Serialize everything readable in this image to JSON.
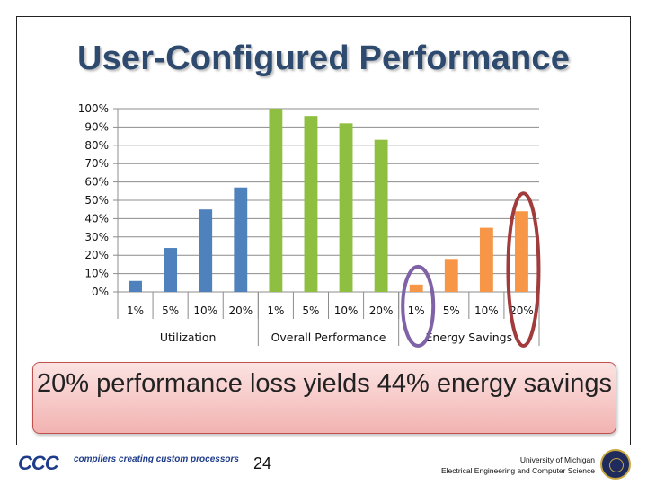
{
  "slide": {
    "title": "User-Configured Performance",
    "callout": "20% performance loss yields 44% energy savings",
    "page_number": "24",
    "footer_logo_text": "CCC",
    "footer_tagline": "compilers creating custom processors",
    "footer_univ_line1": "University of Michigan",
    "footer_univ_line2": "Electrical Engineering and Computer Science"
  },
  "chart_data": {
    "type": "bar",
    "ylim": [
      0,
      100
    ],
    "yticks": [
      "0%",
      "10%",
      "20%",
      "30%",
      "40%",
      "50%",
      "60%",
      "70%",
      "80%",
      "90%",
      "100%"
    ],
    "grid": true,
    "groups": [
      {
        "name": "Utilization",
        "color": "#4f81bd",
        "categories": [
          "1%",
          "5%",
          "10%",
          "20%"
        ],
        "values": [
          6,
          24,
          45,
          57
        ]
      },
      {
        "name": "Overall Performance",
        "color": "#8fbf40",
        "categories": [
          "1%",
          "5%",
          "10%",
          "20%"
        ],
        "values": [
          100,
          96,
          92,
          83
        ]
      },
      {
        "name": "Energy Savings",
        "color": "#f79646",
        "categories": [
          "1%",
          "5%",
          "10%",
          "20%"
        ],
        "values": [
          4,
          18,
          35,
          44
        ]
      }
    ],
    "highlights": [
      {
        "group": 2,
        "index": 0,
        "color": "#7f63a6"
      },
      {
        "group": 2,
        "index": 3,
        "color": "#a23b3b"
      }
    ]
  }
}
